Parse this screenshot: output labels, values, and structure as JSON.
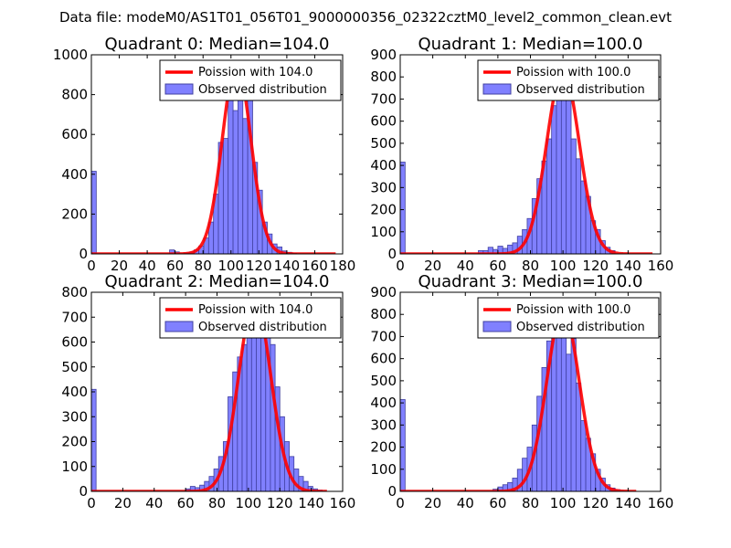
{
  "suptitle": "Data file: modeM0/AS1T01_056T01_9000000356_02322cztM0_level2_common_clean.evt",
  "colors": {
    "bar_fill": "#8080ff",
    "bar_edge": "#4040a0",
    "poisson_line": "#ff0000",
    "axes": "#000000",
    "background": "#ffffff"
  },
  "chart_data": [
    {
      "type": "bar",
      "title": "Quadrant 0: Median=104.0",
      "xlim": [
        0,
        180
      ],
      "ylim": [
        0,
        1000
      ],
      "xticks": [
        0,
        20,
        40,
        60,
        80,
        100,
        120,
        140,
        160,
        180
      ],
      "yticks": [
        0,
        200,
        400,
        600,
        800,
        1000
      ],
      "bin_width": 3.5,
      "histogram": {
        "name": "Observed distribution",
        "bin_starts": [
          0,
          56,
          59.5,
          66.5,
          70,
          73.5,
          77,
          80.5,
          84,
          87.5,
          91,
          94.5,
          98,
          101.5,
          105,
          108.5,
          112,
          115.5,
          119,
          122.5,
          126,
          129.5,
          133,
          136.5,
          140,
          143.5
        ],
        "counts": [
          415,
          20,
          10,
          5,
          10,
          20,
          40,
          80,
          160,
          300,
          560,
          580,
          900,
          720,
          950,
          680,
          810,
          460,
          320,
          160,
          100,
          50,
          35,
          15,
          8,
          3
        ]
      },
      "poisson": {
        "name": "Poission with 104.0",
        "mean": 104.0,
        "peak": 955,
        "x_range": [
          0,
          175
        ]
      },
      "legend_loc": "top-right"
    },
    {
      "type": "bar",
      "title": "Quadrant 1: Median=100.0",
      "xlim": [
        0,
        160
      ],
      "ylim": [
        0,
        900
      ],
      "xticks": [
        0,
        20,
        40,
        60,
        80,
        100,
        120,
        140,
        160
      ],
      "yticks": [
        0,
        100,
        200,
        300,
        400,
        500,
        600,
        700,
        800,
        900
      ],
      "bin_width": 3,
      "histogram": {
        "name": "Observed distribution",
        "bin_starts": [
          0,
          48,
          51,
          54,
          57,
          60,
          63,
          66,
          69,
          72,
          75,
          78,
          81,
          84,
          87,
          90,
          93,
          96,
          99,
          102,
          105,
          108,
          111,
          114,
          117,
          120,
          123,
          126,
          129
        ],
        "counts": [
          415,
          15,
          15,
          30,
          20,
          35,
          25,
          40,
          50,
          80,
          110,
          160,
          250,
          340,
          420,
          520,
          670,
          830,
          760,
          700,
          520,
          430,
          330,
          260,
          150,
          110,
          60,
          30,
          15
        ]
      },
      "poisson": {
        "name": "Poission with 100.0",
        "mean": 100.0,
        "peak": 830,
        "x_range": [
          0,
          155
        ]
      },
      "legend_loc": "top-right"
    },
    {
      "type": "bar",
      "title": "Quadrant 2: Median=104.0",
      "xlim": [
        0,
        160
      ],
      "ylim": [
        0,
        800
      ],
      "xticks": [
        0,
        20,
        40,
        60,
        80,
        100,
        120,
        140,
        160
      ],
      "yticks": [
        0,
        100,
        200,
        300,
        400,
        500,
        600,
        700,
        800
      ],
      "bin_width": 3,
      "histogram": {
        "name": "Observed distribution",
        "bin_starts": [
          0,
          60,
          63,
          66,
          69,
          72,
          75,
          78,
          81,
          84,
          87,
          90,
          93,
          96,
          99,
          102,
          105,
          108,
          111,
          114,
          117,
          120,
          123,
          126,
          129,
          132,
          135,
          138,
          141,
          144
        ],
        "counts": [
          410,
          10,
          20,
          15,
          25,
          40,
          60,
          90,
          140,
          200,
          380,
          480,
          540,
          590,
          640,
          730,
          760,
          700,
          650,
          590,
          420,
          300,
          200,
          140,
          90,
          60,
          40,
          20,
          10,
          5
        ]
      },
      "poisson": {
        "name": "Poission with 104.0",
        "mean": 104.0,
        "peak": 770,
        "x_range": [
          0,
          150
        ]
      },
      "legend_loc": "top-right"
    },
    {
      "type": "bar",
      "title": "Quadrant 3: Median=100.0",
      "xlim": [
        0,
        160
      ],
      "ylim": [
        0,
        900
      ],
      "xticks": [
        0,
        20,
        40,
        60,
        80,
        100,
        120,
        140,
        160
      ],
      "yticks": [
        0,
        100,
        200,
        300,
        400,
        500,
        600,
        700,
        800,
        900
      ],
      "bin_width": 3,
      "histogram": {
        "name": "Observed distribution",
        "bin_starts": [
          0,
          57,
          60,
          63,
          66,
          69,
          72,
          75,
          78,
          81,
          84,
          87,
          90,
          93,
          96,
          99,
          102,
          105,
          108,
          111,
          114,
          117,
          120,
          123,
          126,
          129,
          132
        ],
        "counts": [
          415,
          10,
          20,
          30,
          40,
          60,
          100,
          150,
          200,
          300,
          430,
          560,
          680,
          770,
          800,
          760,
          620,
          690,
          490,
          320,
          240,
          170,
          100,
          60,
          30,
          15,
          8
        ]
      },
      "poisson": {
        "name": "Poission with 100.0",
        "mean": 100.0,
        "peak": 820,
        "x_range": [
          0,
          145
        ]
      },
      "legend_loc": "top-right"
    }
  ]
}
